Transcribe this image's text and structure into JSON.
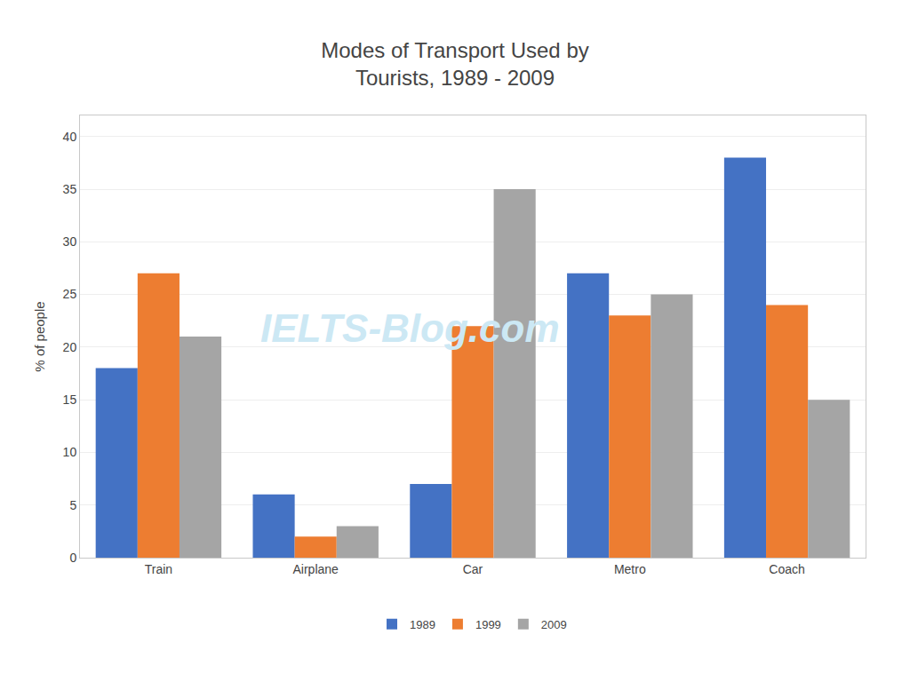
{
  "chart_data": {
    "type": "bar",
    "title": "Modes of Transport Used by\nTourists, 1989 - 2009",
    "ylabel": "% of people",
    "categories": [
      "Train",
      "Airplane",
      "Car",
      "Metro",
      "Coach"
    ],
    "series": [
      {
        "name": "1989",
        "color": "#4472C4",
        "values": [
          18,
          6,
          7,
          27,
          38
        ]
      },
      {
        "name": "1999",
        "color": "#ED7D31",
        "values": [
          27,
          2,
          22,
          23,
          24
        ]
      },
      {
        "name": "2009",
        "color": "#A5A5A5",
        "values": [
          21,
          3,
          35,
          25,
          15
        ]
      }
    ],
    "ylim": [
      0,
      42
    ],
    "yticks": [
      0,
      5,
      10,
      15,
      20,
      25,
      30,
      35,
      40
    ],
    "grid": true,
    "legend": "bottom",
    "annotations": [
      "IELTS-Blog.com"
    ]
  }
}
